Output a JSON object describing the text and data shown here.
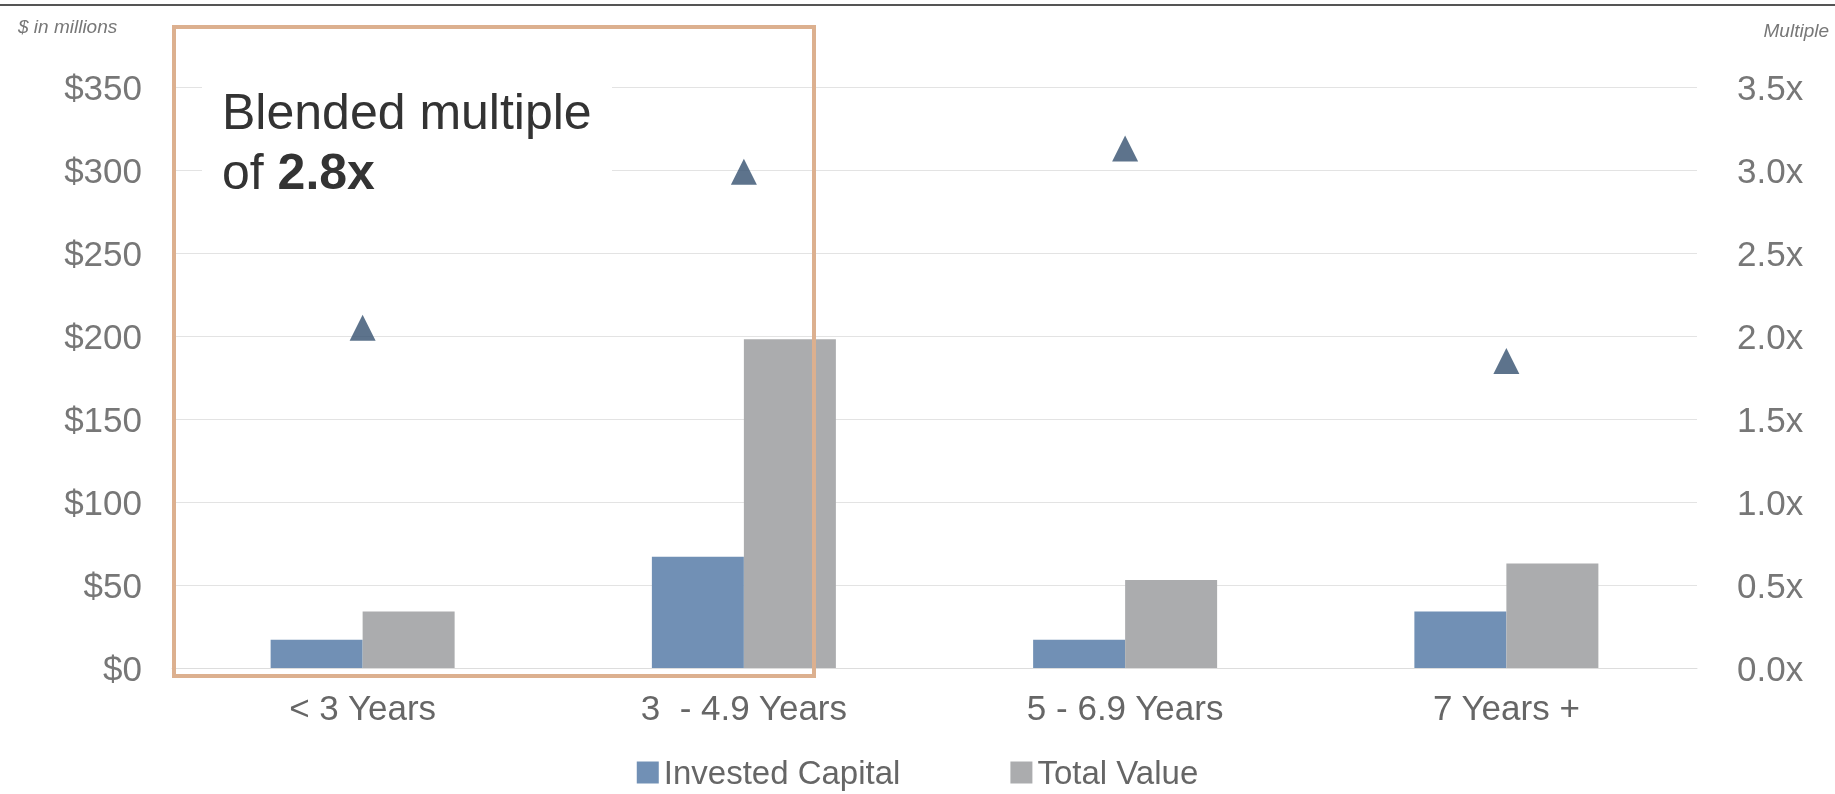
{
  "chart_data": {
    "type": "bar",
    "ylabel": "$ in millions",
    "y2label": "Multiple",
    "categories": [
      "< 3 Years",
      "3  - 4.9 Years",
      "5 - 6.9 Years",
      "7 Years +"
    ],
    "series": [
      {
        "name": "Invested Capital",
        "color": "#7190b5",
        "values": [
          17,
          67,
          17,
          34
        ]
      },
      {
        "name": "Total Value",
        "color": "#abacae",
        "values": [
          34,
          198,
          53,
          63
        ]
      },
      {
        "type": "scatter",
        "axis": "y2",
        "color": "#35506f",
        "marker": "triangle",
        "values": [
          2.05,
          2.99,
          3.13,
          1.85
        ]
      }
    ],
    "ylim": [
      0,
      350
    ],
    "yticks": [
      {
        "value": 0,
        "label": "$0"
      },
      {
        "value": 50,
        "label": "$50"
      },
      {
        "value": 100,
        "label": "$100"
      },
      {
        "value": 150,
        "label": "$150"
      },
      {
        "value": 200,
        "label": "$200"
      },
      {
        "value": 250,
        "label": "$250"
      },
      {
        "value": 300,
        "label": "$300"
      },
      {
        "value": 350,
        "label": "$350"
      }
    ],
    "y2lim": [
      0,
      3.5
    ],
    "y2ticks": [
      {
        "value": 0,
        "label": "0.0x"
      },
      {
        "value": 0.5,
        "label": "0.5x"
      },
      {
        "value": 1,
        "label": "1.0x"
      },
      {
        "value": 1.5,
        "label": "1.5x"
      },
      {
        "value": 2,
        "label": "2.0x"
      },
      {
        "value": 2.5,
        "label": "2.5x"
      },
      {
        "value": 3,
        "label": "3.0x"
      },
      {
        "value": 3.5,
        "label": "3.5x"
      }
    ],
    "annotations": [
      "Blended multiple of 2.8x"
    ],
    "grid": "y",
    "legend": "bottom"
  }
}
